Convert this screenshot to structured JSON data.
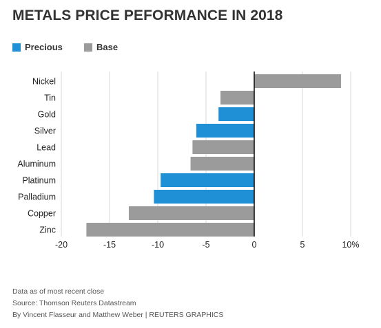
{
  "title": "METALS PRICE PEFORMANCE IN 2018",
  "legend": [
    {
      "label": "Precious",
      "color": "#1f8fd6"
    },
    {
      "label": "Base",
      "color": "#9b9b9c"
    }
  ],
  "chart_data": {
    "type": "bar",
    "orientation": "horizontal",
    "categories": [
      "Nickel",
      "Tin",
      "Gold",
      "Silver",
      "Lead",
      "Aluminum",
      "Platinum",
      "Palladium",
      "Copper",
      "Zinc"
    ],
    "values": [
      9.0,
      -3.5,
      -3.7,
      -6.0,
      -6.4,
      -6.6,
      -9.7,
      -10.4,
      -13.0,
      -17.4
    ],
    "groups": [
      "Base",
      "Base",
      "Precious",
      "Precious",
      "Base",
      "Base",
      "Precious",
      "Precious",
      "Base",
      "Base"
    ],
    "xlim": [
      -20,
      10
    ],
    "xticks": [
      -20,
      -15,
      -10,
      -5,
      0,
      5,
      10
    ],
    "xtick_labels": [
      "-20",
      "-15",
      "-10",
      "-5",
      "0",
      "5",
      "10%"
    ],
    "grid": "vertical"
  },
  "notes": [
    "Data as of most recent close",
    "Source: Thomson Reuters Datastream",
    "By Vincent Flasseur and Matthew Weber | REUTERS GRAPHICS"
  ]
}
